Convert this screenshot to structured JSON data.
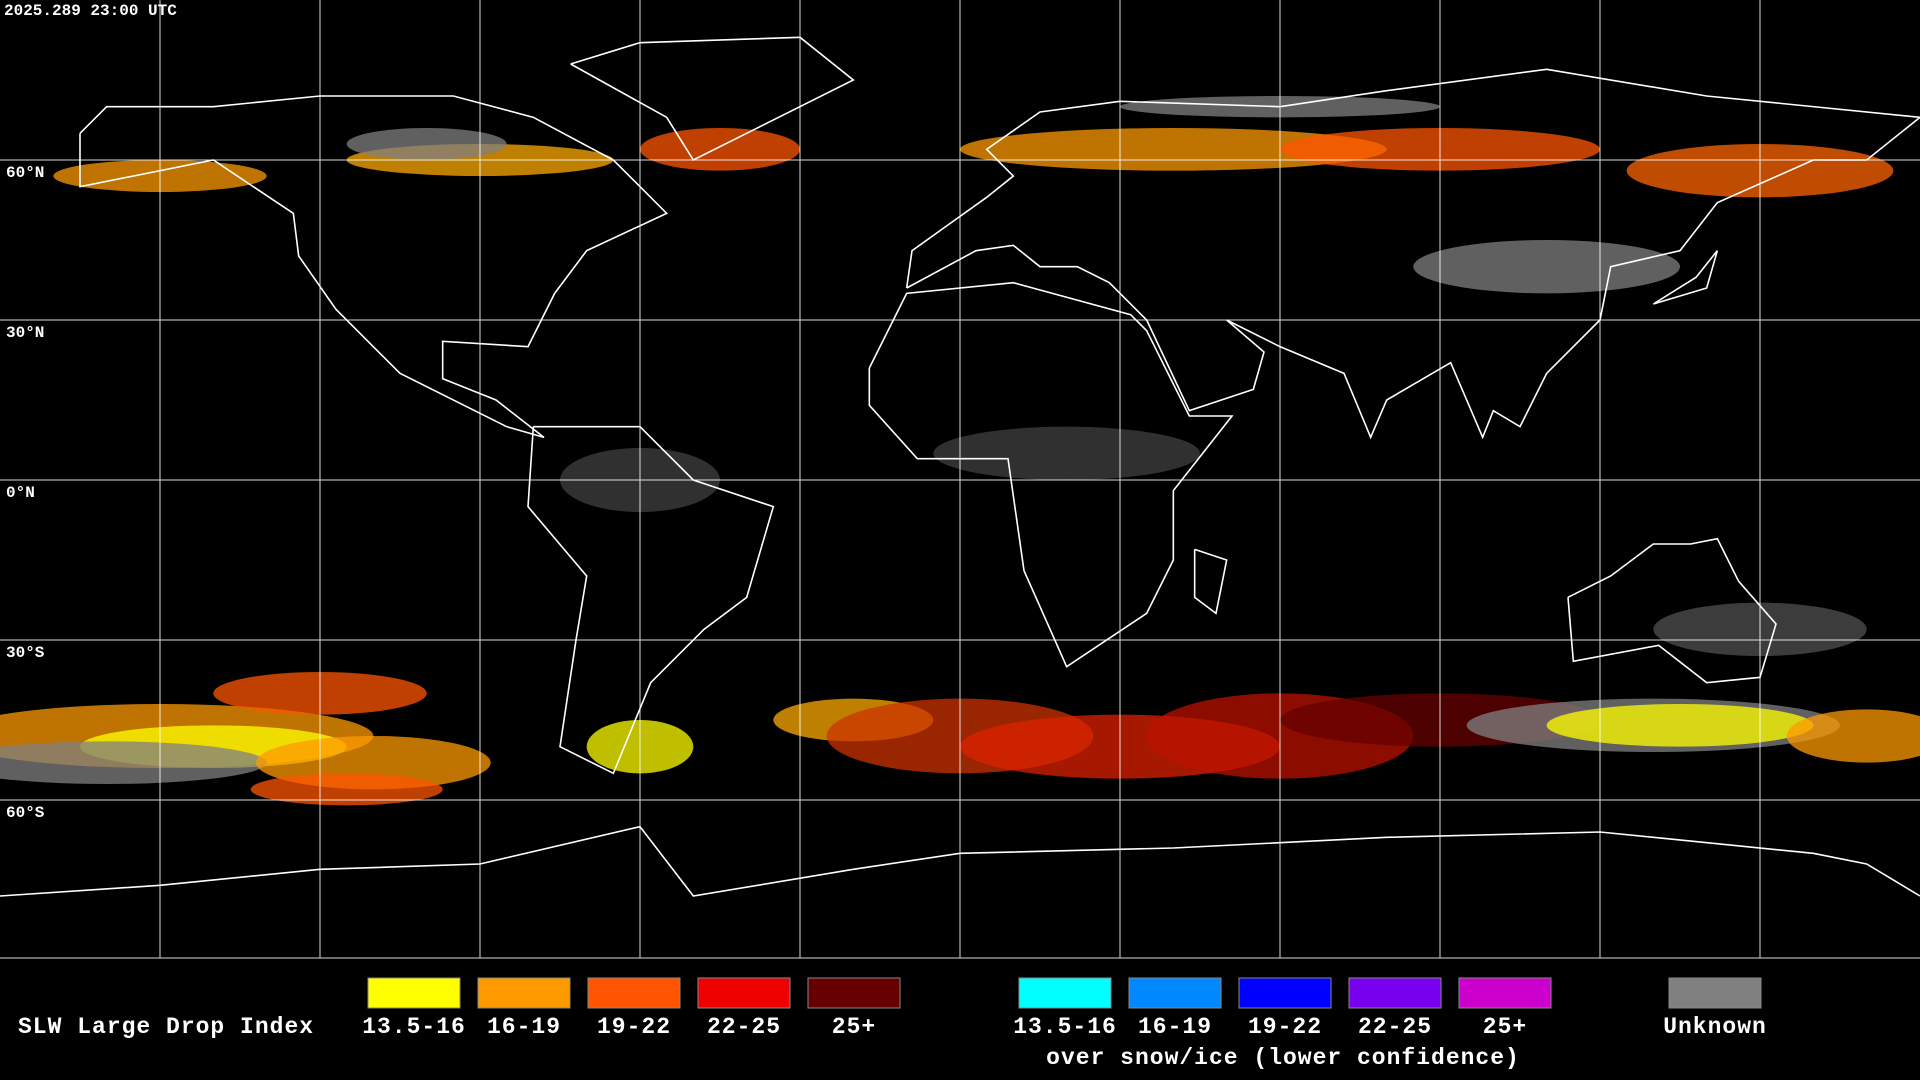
{
  "header": {
    "timestamp": "2025.289 23:00 UTC"
  },
  "map": {
    "lat_labels": [
      "60°N",
      "30°N",
      "0°N",
      "30°S",
      "60°S"
    ]
  },
  "legend": {
    "title": "SLW Large Drop Index",
    "items": [
      {
        "label": "13.5-16",
        "color": "#ffff00"
      },
      {
        "label": "16-19",
        "color": "#ff9900"
      },
      {
        "label": "19-22",
        "color": "#ff5500"
      },
      {
        "label": "22-25",
        "color": "#ee0000"
      },
      {
        "label": "25+",
        "color": "#660000"
      }
    ],
    "snow_items": [
      {
        "label": "13.5-16",
        "color": "#00ffff"
      },
      {
        "label": "16-19",
        "color": "#0088ff"
      },
      {
        "label": "19-22",
        "color": "#0000ff"
      },
      {
        "label": "22-25",
        "color": "#7700ee"
      },
      {
        "label": "25+",
        "color": "#cc00cc"
      }
    ],
    "snow_caption": "over snow/ice (lower confidence)",
    "unknown": {
      "label": "Unknown",
      "color": "#808080"
    }
  }
}
